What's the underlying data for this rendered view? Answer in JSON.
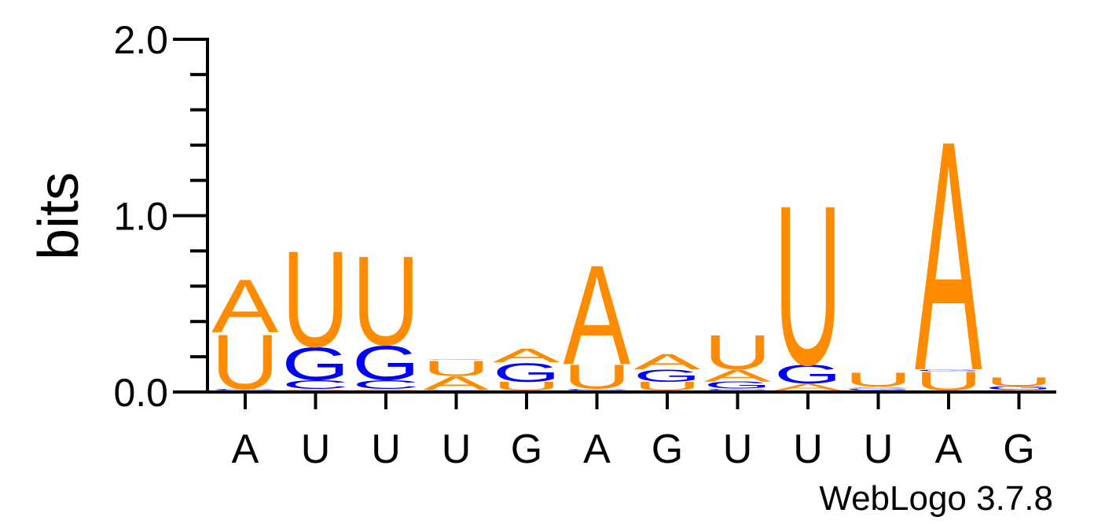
{
  "chart_data": {
    "type": "sequence-logo",
    "ylabel": "bits",
    "ylim": [
      0,
      2.0
    ],
    "yticks_major": [
      0.0,
      1.0,
      2.0
    ],
    "ytick_labels": [
      "0.0",
      "1.0",
      "2.0"
    ],
    "ytick_minor_step": 0.2,
    "colors": {
      "A": "#FF8C00",
      "U": "#FF8C00",
      "G": "#0000FF",
      "C": "#0000FF"
    },
    "x_labels": [
      "A",
      "U",
      "U",
      "U",
      "G",
      "A",
      "G",
      "U",
      "U",
      "U",
      "A",
      "G"
    ],
    "positions": [
      {
        "stack": [
          {
            "letter": "C",
            "bits": 0.01
          },
          {
            "letter": "U",
            "bits": 0.32
          },
          {
            "letter": "A",
            "bits": 0.31
          }
        ]
      },
      {
        "stack": [
          {
            "letter": "A",
            "bits": 0.01
          },
          {
            "letter": "C",
            "bits": 0.05
          },
          {
            "letter": "G",
            "bits": 0.19
          },
          {
            "letter": "U",
            "bits": 0.56
          }
        ]
      },
      {
        "stack": [
          {
            "letter": "A",
            "bits": 0.01
          },
          {
            "letter": "C",
            "bits": 0.05
          },
          {
            "letter": "G",
            "bits": 0.2
          },
          {
            "letter": "U",
            "bits": 0.52
          }
        ]
      },
      {
        "stack": [
          {
            "letter": "C",
            "bits": 0.003
          },
          {
            "letter": "A",
            "bits": 0.08
          },
          {
            "letter": "U",
            "bits": 0.09
          },
          {
            "letter": "C",
            "bits": 0.004
          }
        ]
      },
      {
        "stack": [
          {
            "letter": "U",
            "bits": 0.05
          },
          {
            "letter": "G",
            "bits": 0.11
          },
          {
            "letter": "A",
            "bits": 0.08
          }
        ]
      },
      {
        "stack": [
          {
            "letter": "C",
            "bits": 0.01
          },
          {
            "letter": "U",
            "bits": 0.14
          },
          {
            "letter": "A",
            "bits": 0.58
          }
        ]
      },
      {
        "stack": [
          {
            "letter": "U",
            "bits": 0.05
          },
          {
            "letter": "G",
            "bits": 0.07
          },
          {
            "letter": "A",
            "bits": 0.09
          }
        ]
      },
      {
        "stack": [
          {
            "letter": "C",
            "bits": 0.01
          },
          {
            "letter": "G",
            "bits": 0.04
          },
          {
            "letter": "A",
            "bits": 0.07
          },
          {
            "letter": "U",
            "bits": 0.2
          }
        ]
      },
      {
        "stack": [
          {
            "letter": "A",
            "bits": 0.04
          },
          {
            "letter": "G",
            "bits": 0.11
          },
          {
            "letter": "U",
            "bits": 0.93
          }
        ]
      },
      {
        "stack": [
          {
            "letter": "C",
            "bits": 0.002
          },
          {
            "letter": "G",
            "bits": 0.01
          },
          {
            "letter": "A",
            "bits": 0.01
          },
          {
            "letter": "U",
            "bits": 0.08
          }
        ]
      },
      {
        "stack": [
          {
            "letter": "U",
            "bits": 0.11
          },
          {
            "letter": "G",
            "bits": 0.01
          },
          {
            "letter": "A",
            "bits": 1.34
          }
        ]
      },
      {
        "stack": [
          {
            "letter": "A",
            "bits": 0.005
          },
          {
            "letter": "G",
            "bits": 0.02
          },
          {
            "letter": "U",
            "bits": 0.05
          }
        ]
      }
    ]
  },
  "credit": "WebLogo 3.7.8"
}
